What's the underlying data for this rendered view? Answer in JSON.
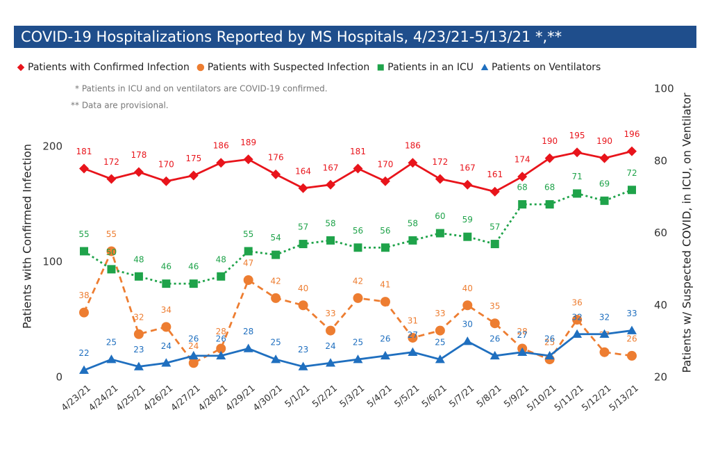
{
  "chart_data": {
    "type": "line",
    "title": "COVID-19 Hospitalizations Reported by MS Hospitals, 4/23/21-5/13/21 *,**",
    "notes": [
      "* Patients in ICU and on ventilators are COVID-19 confirmed.",
      "** Data are provisional."
    ],
    "ylabel": "Patients with Confirmed Infection",
    "y2label": "Patients w/ Suspected COVID, in ICU, on Ventilator",
    "categories": [
      "4/23/21",
      "4/24/21",
      "4/25/21",
      "4/26/21",
      "4/27/21",
      "4/28/21",
      "4/29/21",
      "4/30/21",
      "5/1/21",
      "5/2/21",
      "5/3/21",
      "5/4/21",
      "5/5/21",
      "5/6/21",
      "5/7/21",
      "5/8/21",
      "5/9/21",
      "5/10/21",
      "5/11/21",
      "5/12/21",
      "5/13/21"
    ],
    "ylim": [
      0,
      250
    ],
    "yticks": [
      0,
      100,
      200
    ],
    "y2lim": [
      20,
      100
    ],
    "y2ticks": [
      20,
      40,
      60,
      80,
      100
    ],
    "series": [
      {
        "name": "Patients with Confirmed Infection",
        "color": "#e8141b",
        "marker": "diamond",
        "dash": "solid",
        "values": [
          181,
          172,
          178,
          170,
          175,
          186,
          189,
          176,
          164,
          167,
          181,
          170,
          186,
          172,
          167,
          161,
          174,
          190,
          195,
          190,
          196
        ]
      },
      {
        "name": "Patients with Suspected Infection",
        "color": "#ed7d31",
        "marker": "circle",
        "dash": "dashed",
        "axis": "y2",
        "values": [
          38,
          55,
          32,
          34,
          24,
          28,
          47,
          42,
          40,
          33,
          42,
          41,
          31,
          33,
          40,
          35,
          28,
          25,
          36,
          27,
          26
        ]
      },
      {
        "name": "Patients in an ICU",
        "color": "#1fa34a",
        "marker": "square",
        "dash": "dotted",
        "axis": "y2",
        "values": [
          55,
          50,
          48,
          46,
          46,
          48,
          55,
          54,
          57,
          58,
          56,
          56,
          58,
          60,
          59,
          57,
          68,
          68,
          71,
          69,
          72
        ]
      },
      {
        "name": "Patients on Ventilators",
        "color": "#1f6fbf",
        "marker": "triangle",
        "dash": "solid",
        "axis": "y2",
        "values": [
          22,
          25,
          23,
          24,
          26,
          26,
          28,
          25,
          23,
          24,
          25,
          26,
          27,
          25,
          30,
          26,
          27,
          26,
          32,
          32,
          33
        ]
      }
    ]
  }
}
